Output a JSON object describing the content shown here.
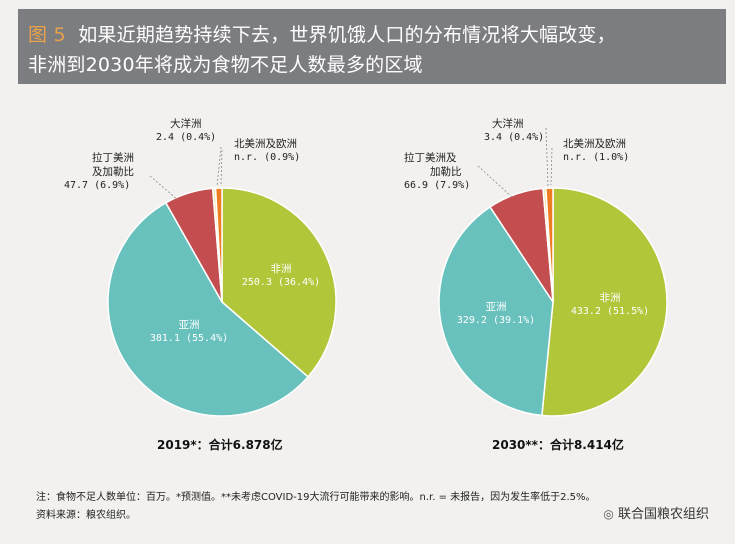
{
  "header": {
    "fig_no": "图 5",
    "title_line1": "如果近期趋势持续下去，世界饥饿人口的分布情况将大幅改变，",
    "title_line2": "非洲到2030年将成为食物不足人数最多的区域"
  },
  "chart_data": [
    {
      "type": "pie",
      "caption": "2019*：合计6.878亿",
      "slices": [
        {
          "region": "非洲",
          "value": 250.3,
          "pct": "36.4%",
          "color": "#b2c63a"
        },
        {
          "region": "亚洲",
          "value": 381.1,
          "pct": "55.4%",
          "color": "#68c1bd"
        },
        {
          "region": "拉丁美洲及加勒比",
          "value": 47.7,
          "pct": "6.9%",
          "color": "#c44e4f"
        },
        {
          "region": "大洋洲",
          "value": 2.4,
          "pct": "0.4%",
          "color": "#f1e6b0"
        },
        {
          "region": "北美洲及欧洲",
          "value": "n.r.",
          "pct": "0.9%",
          "color": "#ee7d22"
        }
      ]
    },
    {
      "type": "pie",
      "caption": "2030**：合计8.414亿",
      "slices": [
        {
          "region": "非洲",
          "value": 433.2,
          "pct": "51.5%",
          "color": "#b2c63a"
        },
        {
          "region": "亚洲",
          "value": 329.2,
          "pct": "39.1%",
          "color": "#68c1bd"
        },
        {
          "region": "拉丁美洲及加勒比",
          "value": 66.9,
          "pct": "7.9%",
          "color": "#c44e4f"
        },
        {
          "region": "大洋洲",
          "value": 3.4,
          "pct": "0.4%",
          "color": "#f1e6b0"
        },
        {
          "region": "北美洲及欧洲",
          "value": "n.r.",
          "pct": "1.0%",
          "color": "#ee7d22"
        }
      ]
    }
  ],
  "labels": {
    "c1": {
      "africa_name": "非洲",
      "africa_val": "250.3 (36.4%)",
      "asia_name": "亚洲",
      "asia_val": "381.1 (55.4%)",
      "latam_name1": "拉丁美洲",
      "latam_name2": "及加勒比",
      "latam_val": "47.7 (6.9%)",
      "oceania_name": "大洋洲",
      "oceania_val": "2.4 (0.4%)",
      "na_name": "北美洲及欧洲",
      "na_val": "n.r. (0.9%)"
    },
    "c2": {
      "africa_name": "非洲",
      "africa_val": "433.2 (51.5%)",
      "asia_name": "亚洲",
      "asia_val": "329.2 (39.1%)",
      "latam_name1": "拉丁美洲及",
      "latam_name2": "加勒比",
      "latam_val": "66.9 (7.9%)",
      "oceania_name": "大洋洲",
      "oceania_val": "3.4 (0.4%)",
      "na_name": "北美洲及欧洲",
      "na_val": "n.r. (1.0%)"
    }
  },
  "notes": {
    "line1": "注：食物不足人数单位：百万。*预测值。**未考虑COVID-19大流行可能带来的影响。n.r. = 未报告，因为发生率低于2.5%。",
    "line2": "资料来源：粮农组织。"
  },
  "watermark": "联合国粮农组织"
}
